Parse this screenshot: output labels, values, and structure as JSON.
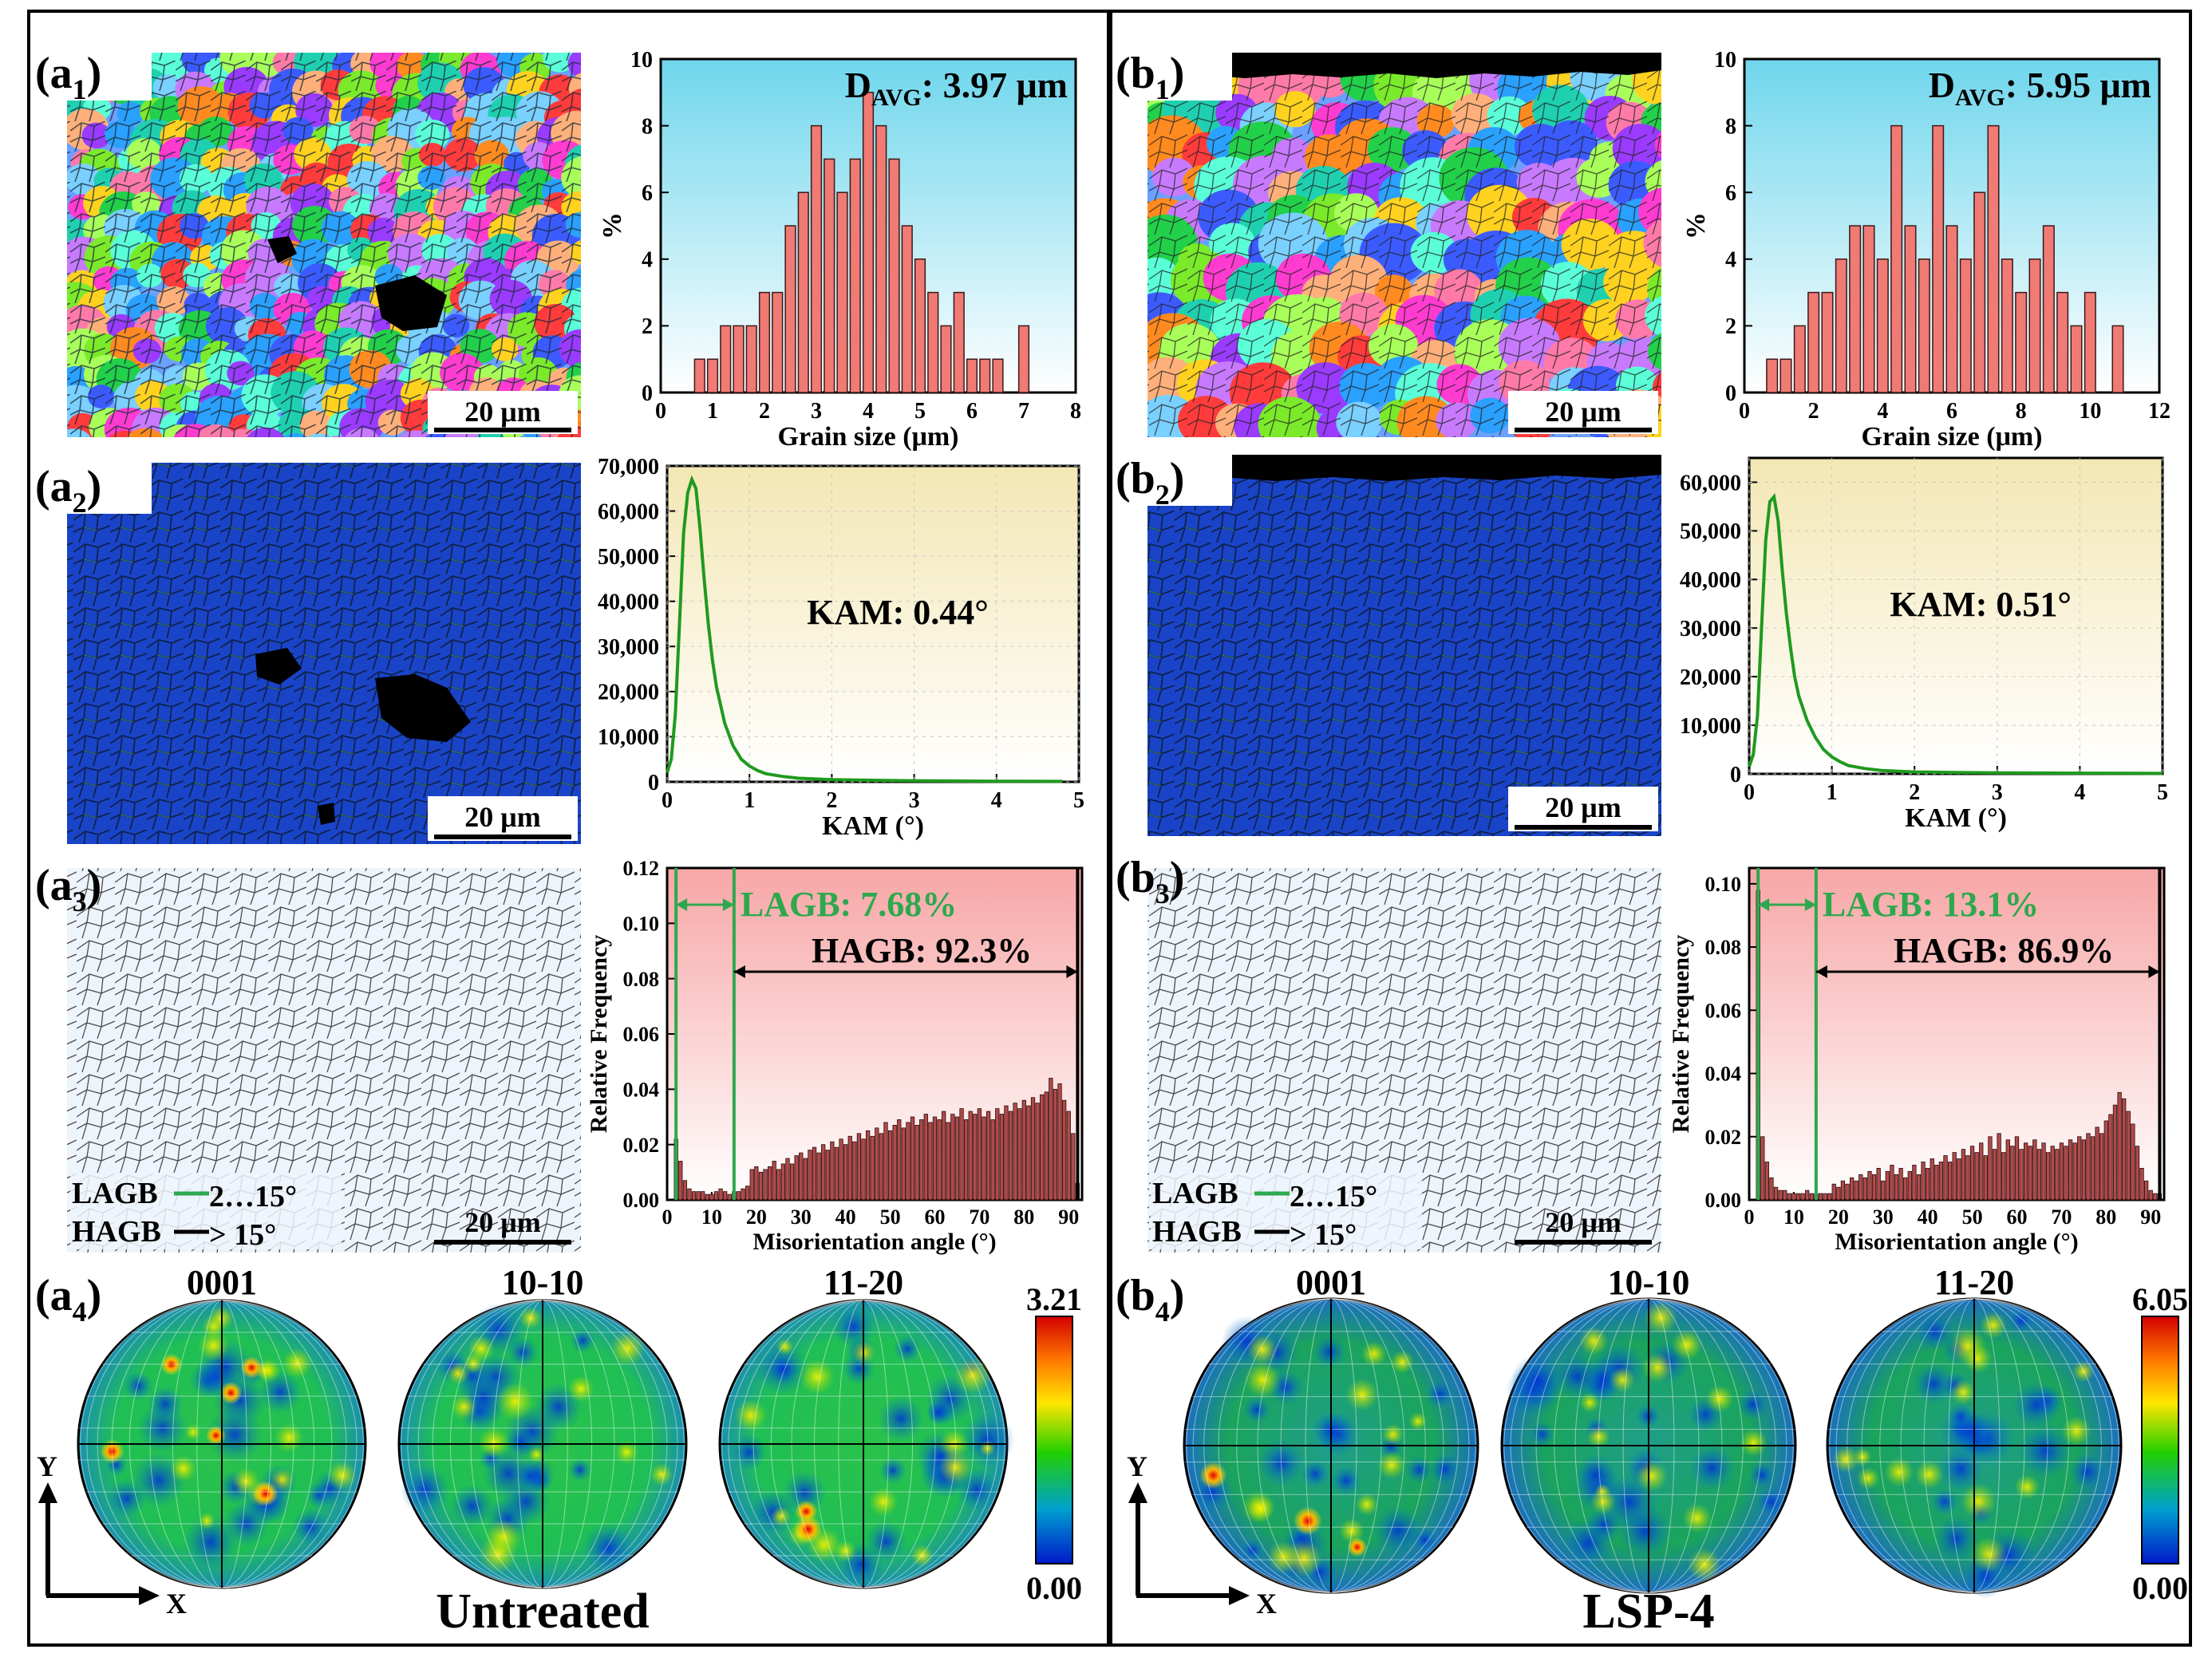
{
  "labels": {
    "a1": "(a",
    "a1_sub": "1",
    "a2": "(a",
    "a2_sub": "2",
    "a3": "(a",
    "a3_sub": "3",
    "a4": "(a",
    "a4_sub": "4",
    "b1": "(b",
    "b1_sub": "1",
    "b2": "(b",
    "b2_sub": "2",
    "b3": "(b",
    "b3_sub": "3",
    "b4": "(b",
    "b4_sub": "4",
    "paren_close": ")"
  },
  "scale_bar": "20 μm",
  "boundary_legend": {
    "lagb": "LAGB",
    "lagb_range": "2…15°",
    "hagb": "HAGB",
    "hagb_range": "> 15°"
  },
  "pole_figures": {
    "names": [
      "0001",
      "10-10",
      "11-20"
    ],
    "axis_y": "Y",
    "axis_x": "X",
    "left": {
      "max": "3.21",
      "min": "0.00",
      "condition": "Untreated"
    },
    "right": {
      "max": "6.05",
      "min": "0.00",
      "condition": "LSP-4"
    }
  },
  "colors": {
    "bar": "#f07a74",
    "kam": "#1f9a1f",
    "lagb": "#2ea84e",
    "mis_bar": "#b24a4a"
  },
  "chart_data": [
    {
      "id": "a1-grain-size",
      "type": "bar",
      "annotation": "D",
      "annotation_sub": "AVG",
      "annotation_value": ": 3.97 μm",
      "xlabel": "Grain size (μm)",
      "ylabel": "%",
      "xlim": [
        0,
        8
      ],
      "ylim": [
        0,
        10
      ],
      "xticks": [
        "0",
        "1",
        "2",
        "3",
        "4",
        "5",
        "6",
        "7",
        "8"
      ],
      "yticks": [
        "0",
        "2",
        "4",
        "6",
        "8",
        "10"
      ],
      "x": [
        0.75,
        1,
        1.25,
        1.5,
        1.75,
        2,
        2.25,
        2.5,
        2.75,
        3,
        3.25,
        3.5,
        3.75,
        4,
        4.25,
        4.5,
        4.75,
        5,
        5.25,
        5.5,
        5.75,
        6,
        6.25,
        6.5,
        7
      ],
      "values": [
        1,
        1,
        2,
        2,
        2,
        3,
        3,
        5,
        6,
        8,
        7,
        6,
        7,
        9,
        8,
        7,
        5,
        4,
        3,
        2,
        3,
        1,
        1,
        1,
        2
      ]
    },
    {
      "id": "b1-grain-size",
      "type": "bar",
      "annotation": "D",
      "annotation_sub": "AVG",
      "annotation_value": ": 5.95 μm",
      "xlabel": "Grain size (μm)",
      "ylabel": "%",
      "xlim": [
        0,
        12
      ],
      "ylim": [
        0,
        10
      ],
      "xticks": [
        "0",
        "2",
        "4",
        "6",
        "8",
        "10",
        "12"
      ],
      "yticks": [
        "0",
        "2",
        "4",
        "6",
        "8",
        "10"
      ],
      "x": [
        0.8,
        1.2,
        1.6,
        2,
        2.4,
        2.8,
        3.2,
        3.6,
        4,
        4.4,
        4.8,
        5.2,
        5.6,
        6,
        6.4,
        6.8,
        7.2,
        7.6,
        8,
        8.4,
        8.8,
        9.2,
        9.6,
        10,
        10.8
      ],
      "values": [
        1,
        1,
        2,
        3,
        3,
        4,
        5,
        5,
        4,
        8,
        5,
        4,
        8,
        5,
        4,
        6,
        8,
        4,
        3,
        4,
        5,
        3,
        2,
        3,
        2
      ]
    },
    {
      "id": "a2-kam",
      "type": "line",
      "annotation": "KAM: 0.44°",
      "xlabel": "KAM (°)",
      "ylabel": "",
      "xlim": [
        0,
        5
      ],
      "ylim": [
        0,
        70000
      ],
      "xticks": [
        "0",
        "1",
        "2",
        "3",
        "4",
        "5"
      ],
      "yticks": [
        "0",
        "10,000",
        "20,000",
        "30,000",
        "40,000",
        "50,000",
        "60,000",
        "70,000"
      ],
      "x": [
        0,
        0.05,
        0.1,
        0.15,
        0.2,
        0.25,
        0.3,
        0.35,
        0.4,
        0.45,
        0.5,
        0.55,
        0.6,
        0.7,
        0.8,
        0.9,
        1.0,
        1.1,
        1.2,
        1.4,
        1.6,
        2.0,
        2.5,
        3.0,
        4.0,
        4.8
      ],
      "y": [
        2000,
        5000,
        15000,
        35000,
        55000,
        64000,
        67000,
        65000,
        56000,
        45000,
        35000,
        27000,
        21000,
        13000,
        8000,
        5000,
        3500,
        2500,
        1800,
        1200,
        800,
        500,
        350,
        250,
        150,
        100
      ]
    },
    {
      "id": "b2-kam",
      "type": "line",
      "annotation": "KAM: 0.51°",
      "xlabel": "KAM (°)",
      "ylabel": "",
      "xlim": [
        0,
        5
      ],
      "ylim": [
        0,
        65000
      ],
      "xticks": [
        "0",
        "1",
        "2",
        "3",
        "4",
        "5"
      ],
      "yticks": [
        "0",
        "10,000",
        "20,000",
        "30,000",
        "40,000",
        "50,000",
        "60,000"
      ],
      "x": [
        0,
        0.05,
        0.1,
        0.15,
        0.2,
        0.25,
        0.3,
        0.35,
        0.4,
        0.45,
        0.5,
        0.55,
        0.6,
        0.7,
        0.8,
        0.9,
        1.0,
        1.1,
        1.2,
        1.4,
        1.6,
        2.0,
        2.5,
        3.0,
        4.0,
        5.0
      ],
      "y": [
        1500,
        4000,
        12000,
        30000,
        48000,
        56000,
        57000,
        52000,
        42000,
        33000,
        26000,
        20000,
        16000,
        11000,
        7500,
        5000,
        3500,
        2500,
        1700,
        1100,
        700,
        400,
        300,
        200,
        150,
        100
      ]
    },
    {
      "id": "a3-misorientation",
      "type": "bar",
      "annotation_lagb": "LAGB: 7.68%",
      "annotation_hagb": "HAGB: 92.3%",
      "xlabel": "Misorientation angle (°)",
      "ylabel": "Relative Frequency",
      "xlim": [
        0,
        93
      ],
      "ylim": [
        0,
        0.12
      ],
      "threshold": 15,
      "xticks": [
        "0",
        "10",
        "20",
        "30",
        "40",
        "50",
        "60",
        "70",
        "80",
        "90"
      ],
      "yticks": [
        "0.00",
        "0.02",
        "0.04",
        "0.06",
        "0.08",
        "0.10",
        "0.12"
      ],
      "bin_start": 2,
      "bin_width": 1,
      "values": [
        0.022,
        0.014,
        0.007,
        0.004,
        0.003,
        0.003,
        0.003,
        0.002,
        0.002,
        0.003,
        0.004,
        0.003,
        0.002,
        0.003,
        0.003,
        0.004,
        0.005,
        0.011,
        0.012,
        0.01,
        0.011,
        0.012,
        0.014,
        0.011,
        0.013,
        0.015,
        0.013,
        0.016,
        0.017,
        0.015,
        0.018,
        0.019,
        0.017,
        0.02,
        0.018,
        0.021,
        0.019,
        0.022,
        0.02,
        0.023,
        0.021,
        0.024,
        0.022,
        0.025,
        0.023,
        0.026,
        0.024,
        0.028,
        0.025,
        0.027,
        0.029,
        0.026,
        0.028,
        0.03,
        0.027,
        0.029,
        0.031,
        0.028,
        0.03,
        0.029,
        0.032,
        0.028,
        0.031,
        0.03,
        0.033,
        0.029,
        0.032,
        0.031,
        0.033,
        0.03,
        0.032,
        0.029,
        0.033,
        0.031,
        0.034,
        0.032,
        0.035,
        0.033,
        0.036,
        0.034,
        0.037,
        0.035,
        0.038,
        0.039,
        0.044,
        0.04,
        0.042,
        0.036,
        0.032,
        0.024,
        0.006
      ]
    },
    {
      "id": "b3-misorientation",
      "type": "bar",
      "annotation_lagb": "LAGB: 13.1%",
      "annotation_hagb": "HAGB: 86.9%",
      "xlabel": "Misorientation angle (°)",
      "ylabel": "Relative Frequency",
      "xlim": [
        0,
        93
      ],
      "ylim": [
        0,
        0.105
      ],
      "threshold": 15,
      "xticks": [
        "0",
        "10",
        "20",
        "30",
        "40",
        "50",
        "60",
        "70",
        "80",
        "90"
      ],
      "yticks": [
        "0.00",
        "0.02",
        "0.04",
        "0.06",
        "0.08",
        "0.10"
      ],
      "bin_start": 2,
      "bin_width": 1,
      "values": [
        0.098,
        0.02,
        0.012,
        0.007,
        0.004,
        0.003,
        0.003,
        0.002,
        0.002,
        0.002,
        0.002,
        0.003,
        0.002,
        0.002,
        0.002,
        0.002,
        0.002,
        0.005,
        0.004,
        0.006,
        0.005,
        0.007,
        0.006,
        0.008,
        0.007,
        0.009,
        0.008,
        0.01,
        0.006,
        0.009,
        0.011,
        0.008,
        0.01,
        0.007,
        0.009,
        0.011,
        0.008,
        0.012,
        0.01,
        0.013,
        0.011,
        0.012,
        0.014,
        0.012,
        0.015,
        0.013,
        0.016,
        0.014,
        0.017,
        0.015,
        0.018,
        0.014,
        0.02,
        0.016,
        0.021,
        0.015,
        0.019,
        0.017,
        0.02,
        0.016,
        0.018,
        0.017,
        0.019,
        0.016,
        0.018,
        0.015,
        0.017,
        0.016,
        0.018,
        0.017,
        0.019,
        0.018,
        0.02,
        0.019,
        0.021,
        0.02,
        0.023,
        0.021,
        0.025,
        0.027,
        0.03,
        0.034,
        0.032,
        0.028,
        0.024,
        0.017,
        0.01,
        0.006,
        0.003,
        0.002,
        0.002
      ]
    }
  ]
}
